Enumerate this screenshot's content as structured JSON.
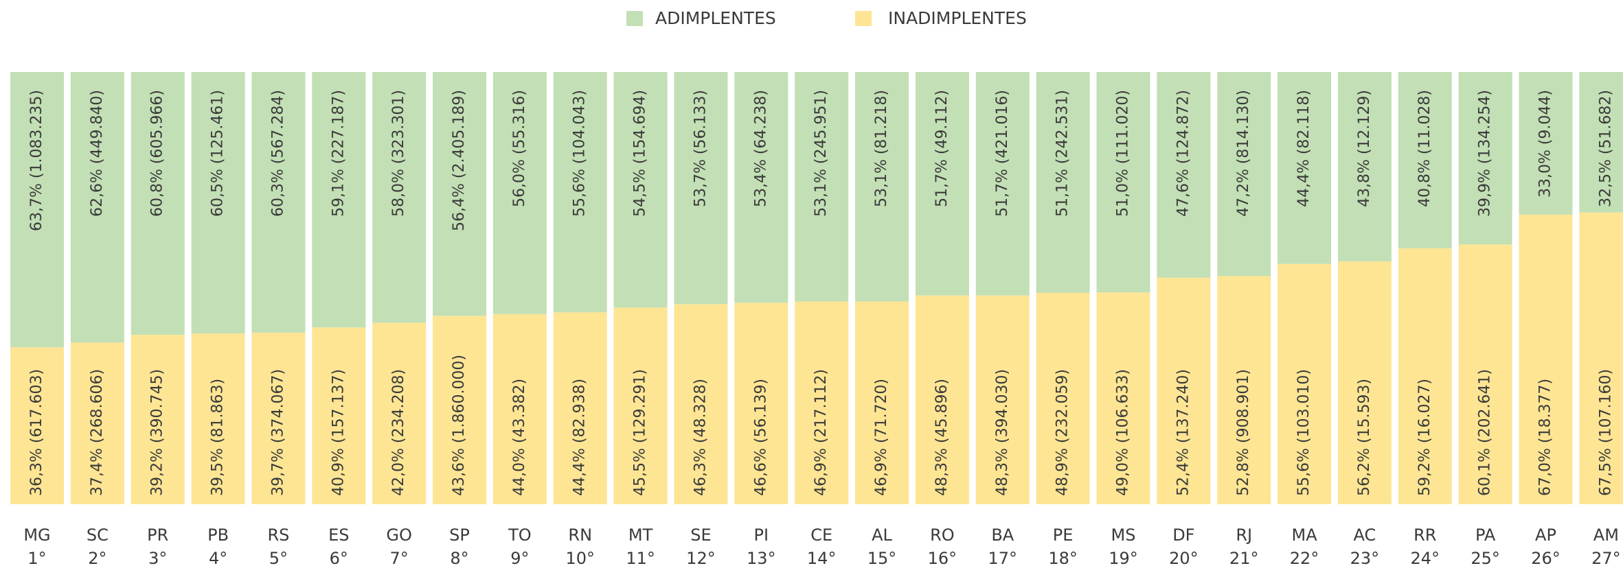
{
  "chart_data": {
    "type": "stacked-bar-100",
    "categories": [
      "MG",
      "SC",
      "PR",
      "PB",
      "RS",
      "ES",
      "GO",
      "SP",
      "TO",
      "RN",
      "MT",
      "SE",
      "PI",
      "CE",
      "AL",
      "RO",
      "BA",
      "PE",
      "MS",
      "DF",
      "RJ",
      "MA",
      "AC",
      "RR",
      "PA",
      "AP",
      "AM"
    ],
    "ranks": [
      "1°",
      "2°",
      "3°",
      "4°",
      "5°",
      "6°",
      "7°",
      "8°",
      "9°",
      "10°",
      "11°",
      "12°",
      "13°",
      "14°",
      "15°",
      "16°",
      "17°",
      "18°",
      "19°",
      "20°",
      "21°",
      "22°",
      "23°",
      "24°",
      "25°",
      "26°",
      "27°"
    ],
    "ylim": [
      0,
      100
    ],
    "series": [
      {
        "name": "ADIMPLENTES",
        "color": "#c3dfb5",
        "values": [
          63.7,
          62.6,
          60.8,
          60.5,
          60.3,
          59.1,
          58.0,
          56.4,
          56.0,
          55.6,
          54.5,
          53.7,
          53.4,
          53.1,
          53.1,
          51.7,
          51.7,
          51.1,
          51.0,
          47.6,
          47.2,
          44.4,
          43.8,
          40.8,
          39.9,
          33.0,
          32.5
        ],
        "value_labels": [
          "63,7% (1.083.235)",
          "62,6% (449.840)",
          "60,8% (605.966)",
          "60,5% (125.461)",
          "60,3% (567.284)",
          "59,1% (227.187)",
          "58,0% (323.301)",
          "56,4% (2.405.189)",
          "56,0% (55.316)",
          "55,6% (104.043)",
          "54,5% (154.694)",
          "53,7% (56.133)",
          "53,4% (64.238)",
          "53,1% (245.951)",
          "53,1% (81.218)",
          "51,7% (49.112)",
          "51,7% (421.016)",
          "51,1% (242.531)",
          "51,0% (111.020)",
          "47,6% (124.872)",
          "47,2% (814.130)",
          "44,4% (82.118)",
          "43,8% (12.129)",
          "40,8% (11.028)",
          "39,9% (134.254)",
          "33,0% (9.044)",
          "32,5% (51.682)"
        ]
      },
      {
        "name": "INADIMPLENTES",
        "color": "#fde594",
        "values": [
          36.3,
          37.4,
          39.2,
          39.5,
          39.7,
          40.9,
          42.0,
          43.6,
          44.0,
          44.4,
          45.5,
          46.3,
          46.6,
          46.9,
          46.9,
          48.3,
          48.3,
          48.9,
          49.0,
          52.4,
          52.8,
          55.6,
          56.2,
          59.2,
          60.1,
          67.0,
          67.5
        ],
        "value_labels": [
          "36,3% (617.603)",
          "37,4% (268.606)",
          "39,2% (390.745)",
          "39,5% (81.863)",
          "39,7% (374.067)",
          "40,9% (157.137)",
          "42,0% (234.208)",
          "43,6% (1.860.000)",
          "44,0% (43.382)",
          "44,4% (82.938)",
          "45,5% (129.291)",
          "46,3% (48.328)",
          "46,6% (56.139)",
          "46,9% (217.112)",
          "46,9% (71.720)",
          "48,3% (45.896)",
          "48,3% (394.030)",
          "48,9% (232.059)",
          "49,0% (106.633)",
          "52,4% (137.240)",
          "52,8% (908.901)",
          "55,6% (103.010)",
          "56,2% (15.593)",
          "59,2% (16.027)",
          "60,1% (202.641)",
          "67,0% (18.377)",
          "67,5% (107.160)"
        ]
      }
    ]
  }
}
